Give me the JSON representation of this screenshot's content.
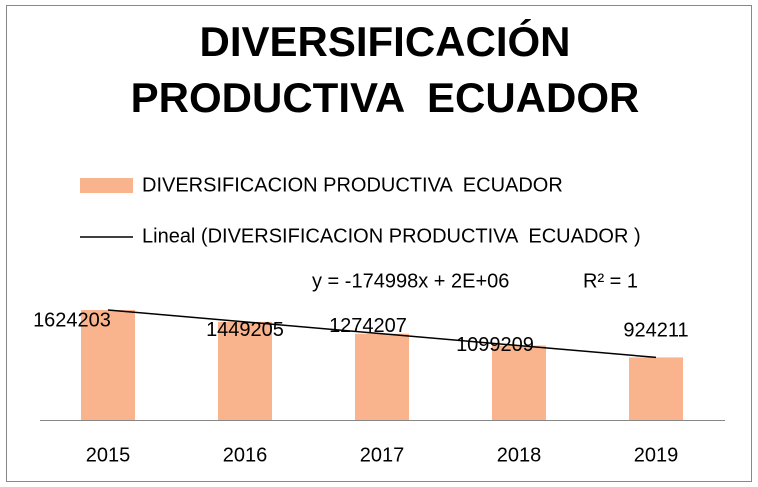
{
  "chart_data": {
    "type": "bar",
    "title": [
      "DIVERSIFICACIÓN",
      "PRODUCTIVA  ECUADOR"
    ],
    "categories": [
      "2015",
      "2016",
      "2017",
      "2018",
      "2019"
    ],
    "series": [
      {
        "name": "DIVERSIFICACION PRODUCTIVA  ECUADOR",
        "color": "#f9b48e",
        "values": [
          1624203,
          1449205,
          1274207,
          1099209,
          924211
        ]
      }
    ],
    "trendline": {
      "name": "Lineal (DIVERSIFICACION PRODUCTIVA  ECUADOR )",
      "color": "#000000",
      "equation": "y = -174998x + 2E+06",
      "r_squared": "R² = 1"
    }
  }
}
